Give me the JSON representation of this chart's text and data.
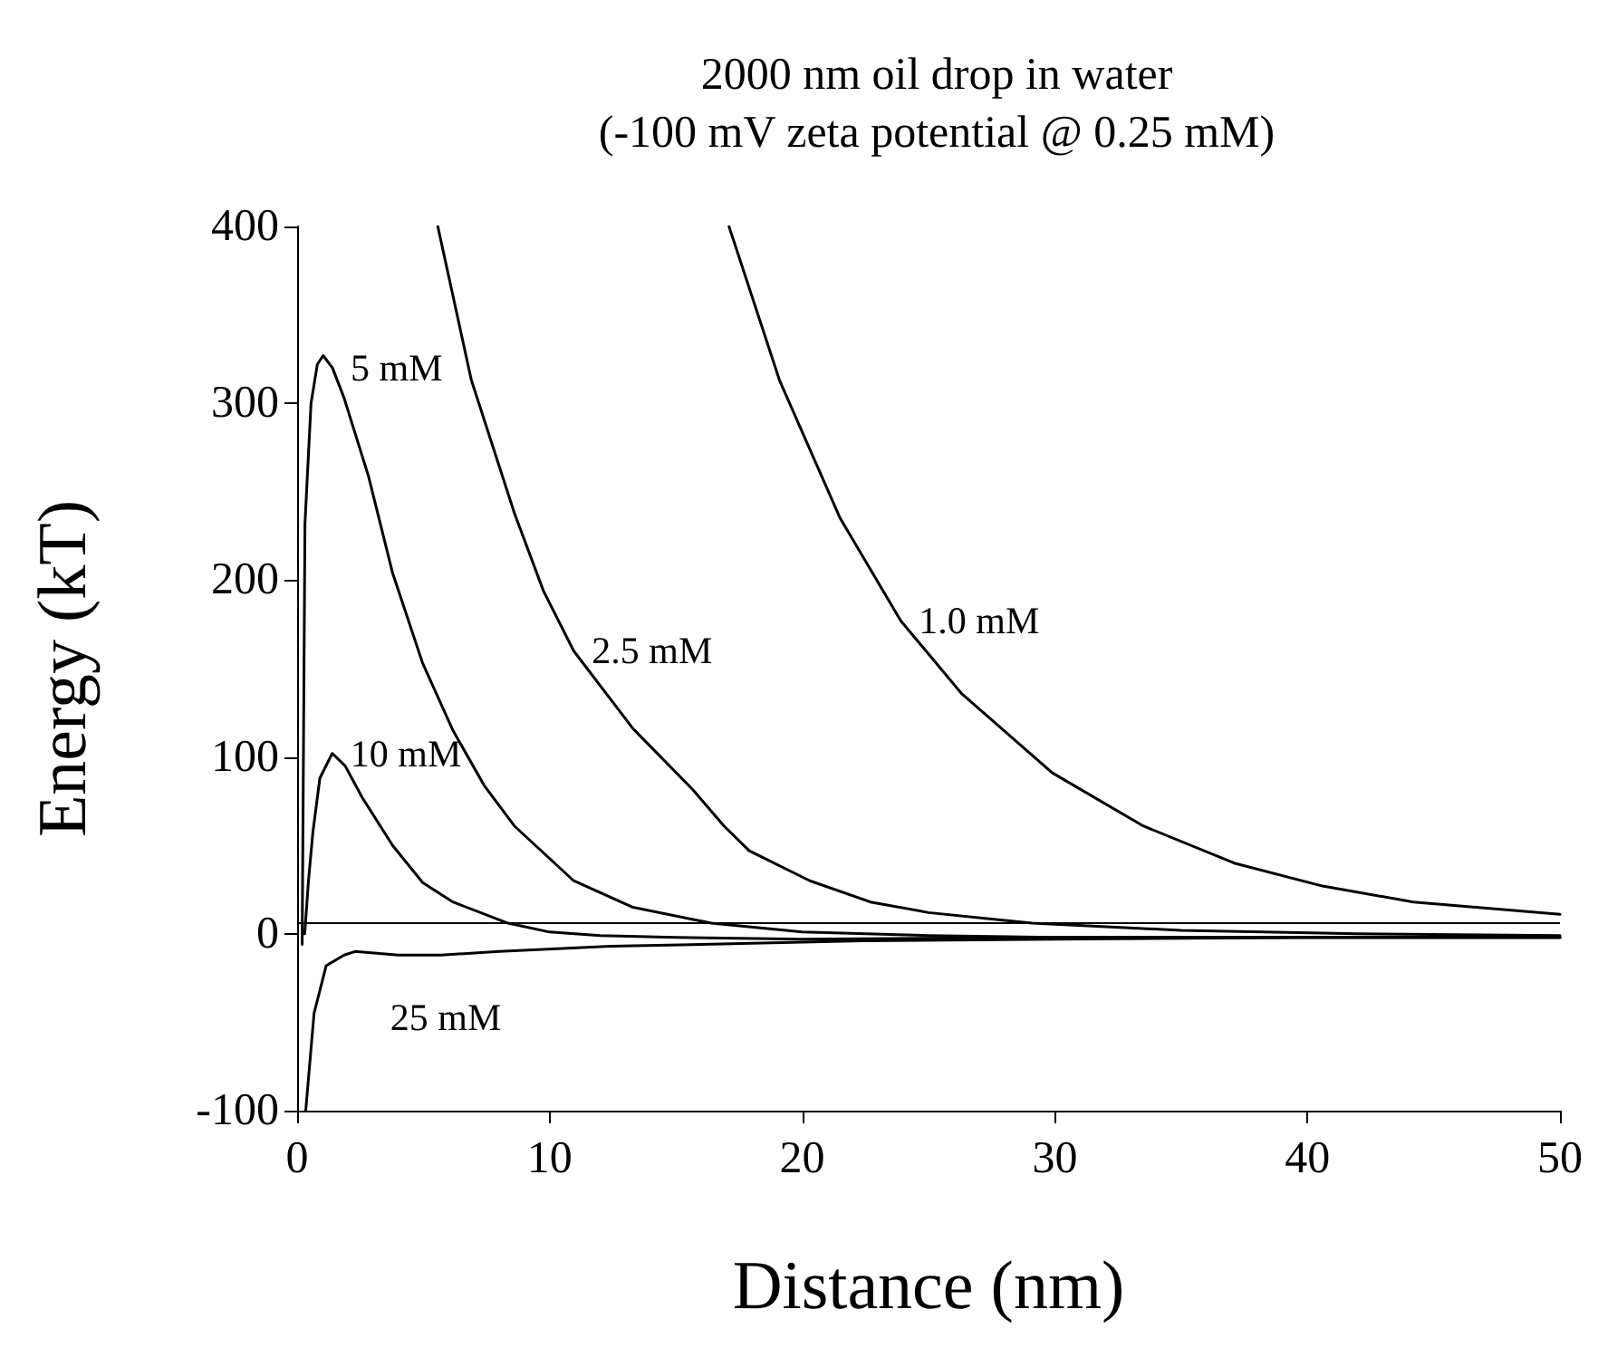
{
  "chart_data": {
    "type": "line",
    "title": "2000 nm oil drop in water",
    "subtitle": "(-100 mV zeta potential @ 0.25 mM)",
    "xlabel": "Distance (nm)",
    "ylabel": "Energy (kT)",
    "xlim": [
      0,
      50
    ],
    "ylim": [
      -100,
      400
    ],
    "xticks": [
      0,
      10,
      20,
      30,
      40,
      50
    ],
    "yticks": [
      -100,
      0,
      100,
      200,
      300,
      400
    ],
    "grid": false,
    "legend": false,
    "marker": "none",
    "line_style": "solid",
    "series": [
      {
        "name": "1.0 mM",
        "color": "#000000",
        "x": [
          17.1,
          19.1,
          21.5,
          23.9,
          26.3,
          29.9,
          33.5,
          37.1,
          40.6,
          44.2,
          50
        ],
        "values": [
          400,
          313,
          235,
          177,
          136,
          91,
          61,
          40,
          27,
          18,
          11
        ]
      },
      {
        "name": "2.5 mM",
        "color": "#000000",
        "x": [
          5.57,
          6.9,
          8.6,
          9.75,
          10.95,
          13.3,
          15.7,
          16.9,
          17.9,
          20.3,
          22.7,
          25,
          29.1,
          35,
          42,
          50
        ],
        "values": [
          400,
          313,
          238,
          194,
          160,
          116,
          81,
          61,
          47,
          30,
          18,
          12,
          6,
          2,
          0,
          -1
        ]
      },
      {
        "name": "5 mM",
        "color": "#000000",
        "x": [
          0.2,
          0.31,
          0.55,
          0.8,
          1.03,
          1.4,
          1.86,
          2.82,
          3.78,
          4.97,
          6.17,
          7.4,
          8.6,
          10.95,
          13.3,
          16.4,
          20,
          25,
          30,
          40,
          50
        ],
        "values": [
          -6,
          232,
          300,
          322,
          327,
          320,
          303,
          259,
          204,
          153,
          115,
          84,
          61,
          30,
          15,
          6,
          1,
          -1,
          -2,
          -2,
          -2
        ]
      },
      {
        "name": "10 mM",
        "color": "#000000",
        "x": [
          0.3,
          0.45,
          0.62,
          0.9,
          1.39,
          1.9,
          2.58,
          3.78,
          4.97,
          6.17,
          8.35,
          10,
          12,
          15,
          20,
          30,
          50
        ],
        "values": [
          0,
          30,
          57,
          88,
          102,
          95,
          77,
          50,
          29,
          18,
          6,
          1,
          -1,
          -2,
          -3,
          -2,
          -2
        ]
      },
      {
        "name": "25 mM",
        "color": "#000000",
        "x": [
          0.34,
          0.67,
          1.15,
          1.86,
          2.3,
          4,
          5.7,
          8,
          12.4,
          16,
          22.4,
          30,
          40,
          50
        ],
        "values": [
          -100,
          -45,
          -18,
          -12,
          -10,
          -12,
          -12,
          -10,
          -7,
          -6,
          -4,
          -3,
          -2,
          -2
        ]
      }
    ],
    "ref_lines": [
      {
        "axis": "y",
        "value": 6,
        "color": "#000000",
        "line_style": "solid"
      }
    ]
  }
}
